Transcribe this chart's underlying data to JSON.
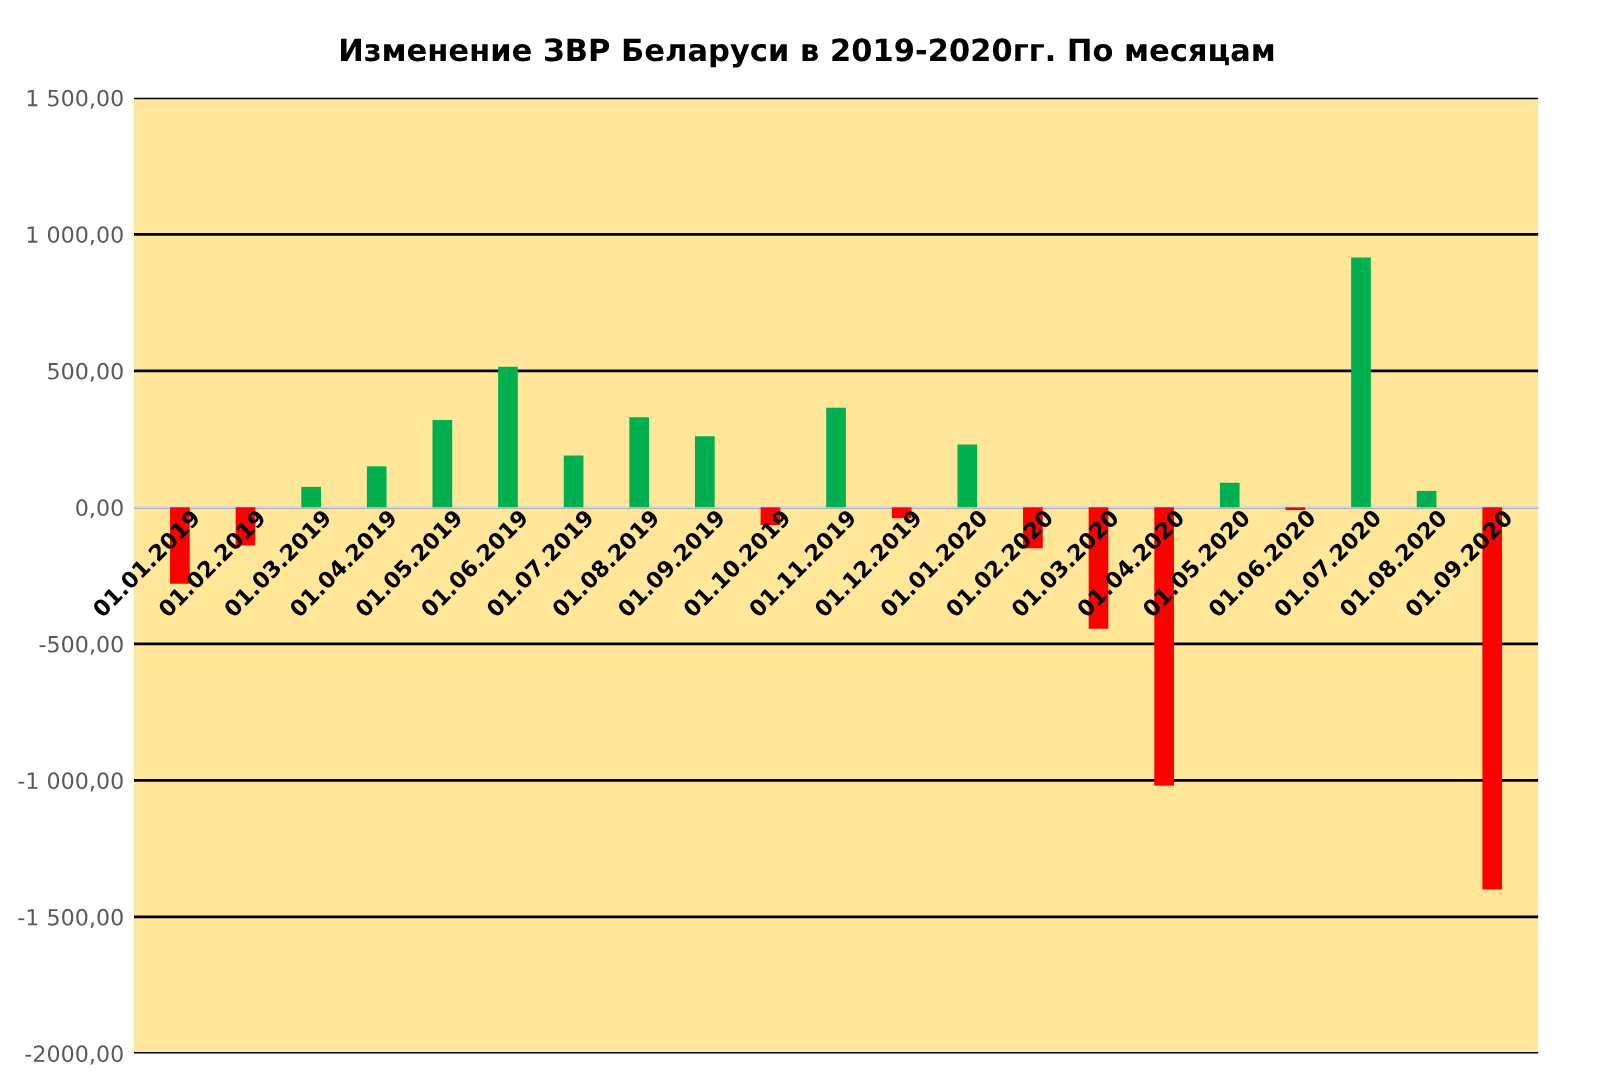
{
  "chart_data": {
    "type": "bar",
    "title": "Изменение ЗВР Беларуси в 2019-2020гг. По месяцам",
    "categories": [
      "01.01.2019",
      "01.02.2019",
      "01.03.2019",
      "01.04.2019",
      "01.05.2019",
      "01.06.2019",
      "01.07.2019",
      "01.08.2019",
      "01.09.2019",
      "01.10.2019",
      "01.11.2019",
      "01.12.2019",
      "01.01.2020",
      "01.02.2020",
      "01.03.2020",
      "01.04.2020",
      "01.05.2020",
      "01.06.2020",
      "01.07.2020",
      "01.08.2020",
      "01.09.2020"
    ],
    "values": [
      -280,
      -140,
      75,
      150,
      320,
      515,
      190,
      330,
      260,
      -65,
      365,
      -40,
      230,
      -150,
      -445,
      -1020,
      90,
      -10,
      915,
      60,
      -1400
    ],
    "colors": [
      "#ff0000",
      "#ff0000",
      "#00b050",
      "#00b050",
      "#00b050",
      "#00b050",
      "#00b050",
      "#00b050",
      "#00b050",
      "#ff0000",
      "#00b050",
      "#ff0000",
      "#00b050",
      "#ff0000",
      "#ff0000",
      "#ff0000",
      "#00b050",
      "#ff0000",
      "#00b050",
      "#00b050",
      "#ff0000"
    ],
    "ylim": [
      -2000,
      1500
    ],
    "yticks": [
      {
        "value": -2000,
        "label": "-2000,00"
      },
      {
        "value": -1500,
        "label": "-1 500,00"
      },
      {
        "value": -1000,
        "label": "-1 000,00"
      },
      {
        "value": -500,
        "label": "-500,00"
      },
      {
        "value": 0,
        "label": "0,00"
      },
      {
        "value": 500,
        "label": "500,00"
      },
      {
        "value": 1000,
        "label": "1 000,00"
      },
      {
        "value": 1500,
        "label": "1 500,00"
      }
    ],
    "grid": "y"
  }
}
